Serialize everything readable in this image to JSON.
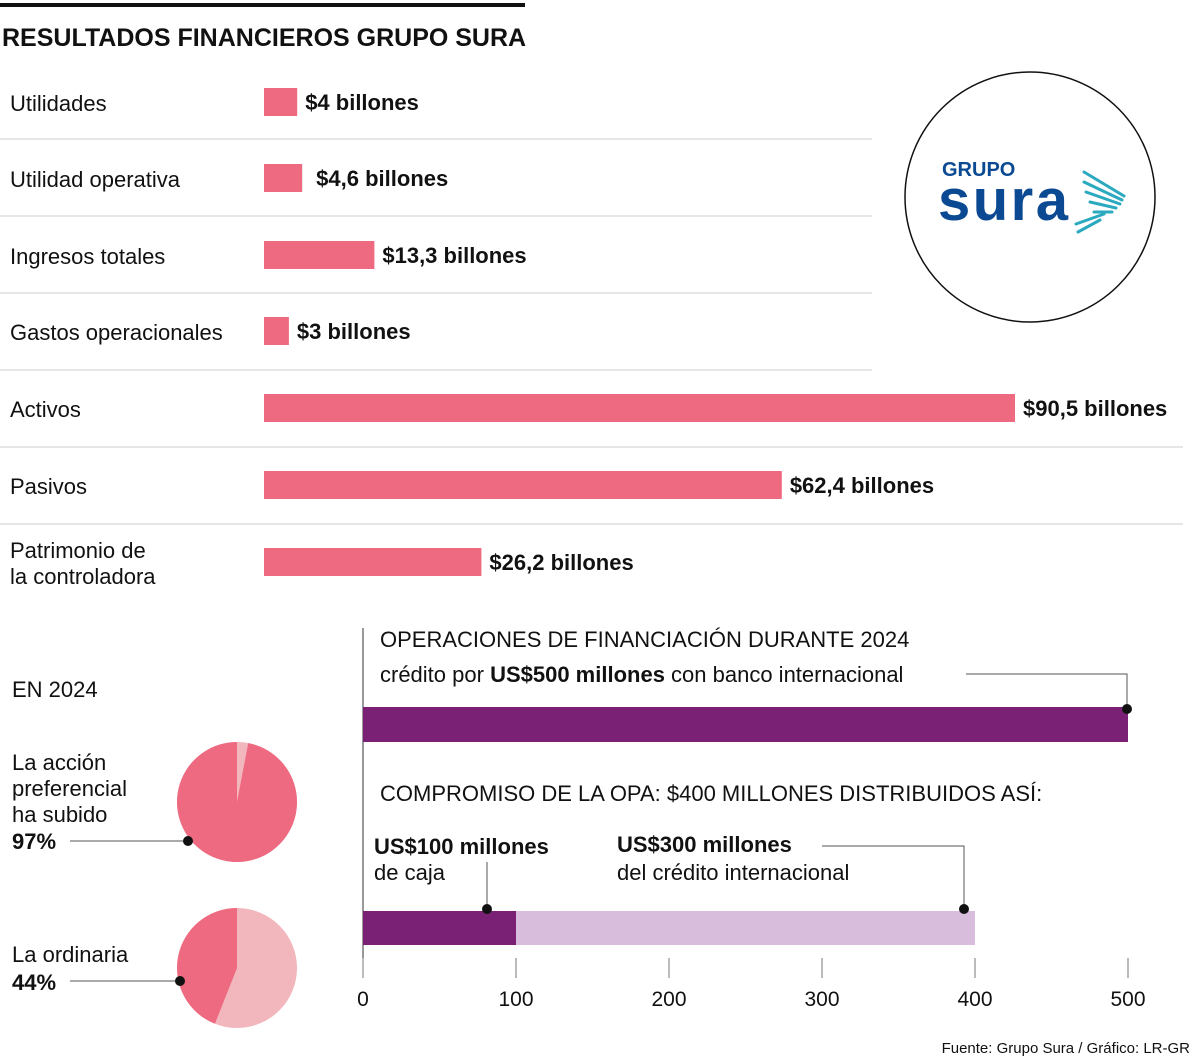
{
  "title": "RESULTADOS FINANCIEROS GRUPO SURA",
  "logo": {
    "text_top": "GRUPO",
    "text_main": "sura"
  },
  "colors": {
    "pink": "#ee6a80",
    "light_pink": "#f2b7bd",
    "purple": "#7a2176",
    "light_purple": "#d9bddc",
    "logo_blue": "#0b4a93",
    "logo_teal": "#2aa9bf"
  },
  "chart_data": [
    {
      "type": "bar",
      "orientation": "horizontal",
      "title": "RESULTADOS FINANCIEROS GRUPO SURA",
      "unit": "billones",
      "categories": [
        "Utilidades",
        "Utilidad operativa",
        "Ingresos totales",
        "Gastos operacionales",
        "Activos",
        "Pasivos",
        "Patrimonio de la controladora"
      ],
      "values": [
        4,
        4.6,
        13.3,
        3,
        90.5,
        62.4,
        26.2
      ],
      "labels": [
        "$4 billones",
        "$4,6 billones",
        "$13,3 billones",
        "$3 billones",
        "$90,5 billones",
        "$62,4 billones",
        "$26,2 billones"
      ]
    },
    {
      "type": "pie",
      "title": "EN 2024",
      "items": [
        {
          "label_lines": [
            "La acción",
            "preferencial",
            "ha subido"
          ],
          "value_label": "97%",
          "value": 97
        },
        {
          "label_lines": [
            "La ordinaria"
          ],
          "value_label": "44%",
          "value": 44
        }
      ]
    },
    {
      "type": "bar",
      "orientation": "horizontal",
      "title": "OPERACIONES DE FINANCIACIÓN DURANTE 2024",
      "xlim": [
        0,
        500
      ],
      "xticks": [
        0,
        100,
        200,
        300,
        400,
        500
      ],
      "credit": {
        "prefix": "crédito por ",
        "bold": "US$500 millones",
        "suffix": " con banco internacional",
        "value": 500
      },
      "opa": {
        "title": "COMPROMISO DE LA OPA: $400 MILLONES DISTRIBUIDOS ASÍ:",
        "segments": [
          {
            "bold": "US$100 millones",
            "sub": "de caja",
            "value": 100
          },
          {
            "bold": "US$300 millones",
            "sub": "del crédito internacional",
            "value": 300
          }
        ]
      }
    }
  ],
  "source": "Fuente: Grupo Sura / Gráfico: LR-GR"
}
